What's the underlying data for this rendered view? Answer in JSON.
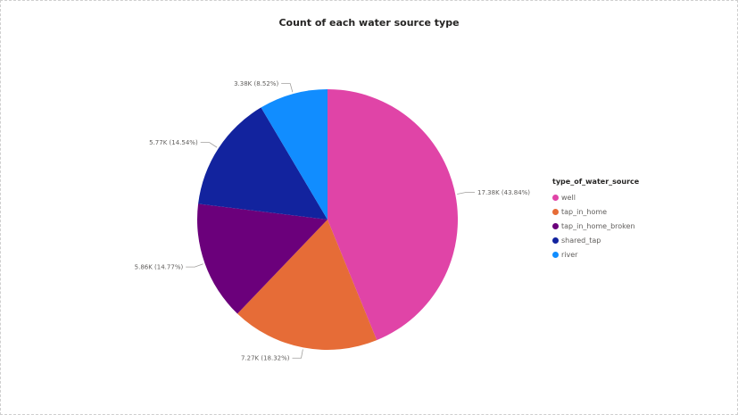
{
  "chart_data": {
    "type": "pie",
    "title": "Count of each water source type",
    "legend_title": "type_of_water_source",
    "legend_position": "right",
    "slices": [
      {
        "name": "well",
        "value": 17380,
        "label": "17.38K (43.84%)",
        "color": "#e044a7"
      },
      {
        "name": "tap_in_home",
        "value": 7270,
        "label": "7.27K (18.32%)",
        "color": "#e66c37"
      },
      {
        "name": "tap_in_home_broken",
        "value": 5860,
        "label": "5.86K (14.77%)",
        "color": "#6b007b"
      },
      {
        "name": "shared_tap",
        "value": 5770,
        "label": "5.77K (14.54%)",
        "color": "#12239e"
      },
      {
        "name": "river",
        "value": 3380,
        "label": "3.38K (8.52%)",
        "color": "#118dff"
      }
    ]
  }
}
